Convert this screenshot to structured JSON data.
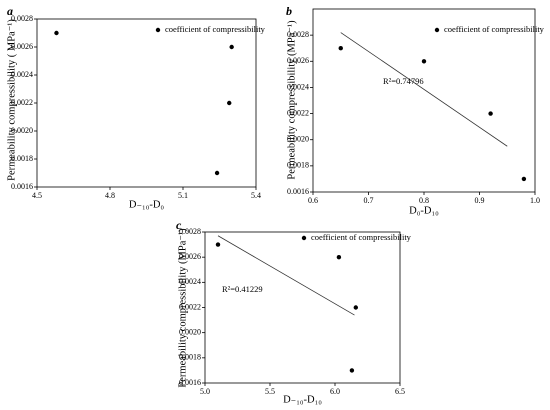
{
  "chart_data": [
    {
      "type": "scatter",
      "panel_label": "a",
      "x_label": "D₋₁₀-D₀",
      "y_label": "Permeability compressibility ( MPa⁻¹)",
      "series": [
        {
          "name": "coefficient of compressibility",
          "color": "#000000",
          "x": [
            4.58,
            5.3,
            5.29,
            5.24
          ],
          "values": [
            0.0027,
            0.0026,
            0.0022,
            0.0017
          ]
        }
      ],
      "xlim": [
        4.5,
        5.4
      ],
      "xticks": [
        4.5,
        4.8,
        5.1,
        5.4
      ],
      "ylim": [
        0.0016,
        0.0028
      ],
      "yticks": [
        0.0016,
        0.0018,
        {
          "value": 0.002,
          "label": "0.0020"
        },
        0.0022,
        0.0024,
        0.0026,
        0.0028
      ]
    },
    {
      "type": "scatter",
      "panel_label": "b",
      "x_label": "D₀-D₁₀",
      "y_label": "Permeability compressibility (MPa⁻¹)",
      "series": [
        {
          "name": "coefficient of compressibility",
          "color": "#000000",
          "x": [
            0.65,
            0.8,
            0.92,
            0.98
          ],
          "values": [
            0.0027,
            0.0026,
            0.0022,
            0.0017
          ]
        }
      ],
      "trendline": {
        "x": [
          0.65,
          0.95
        ],
        "y": [
          0.00282,
          0.00195
        ]
      },
      "annotation": "R²=0.74796",
      "xlim": [
        0.6,
        1.0
      ],
      "xticks": [
        0.6,
        0.7,
        0.8,
        0.9,
        {
          "value": 1,
          "label": "1.0"
        }
      ],
      "ylim": [
        0.0016,
        0.003
      ],
      "yticks": [
        0.0016,
        0.0018,
        {
          "value": 0.002,
          "label": "0.0020"
        },
        0.0022,
        0.0024,
        0.0026,
        0.0028
      ]
    },
    {
      "type": "scatter",
      "panel_label": "c",
      "x_label": "D₋₁₀-D₁₀",
      "y_label": "Permeability compressibility (MPa⁻¹)",
      "series": [
        {
          "name": "coefficient of compressibility",
          "color": "#000000",
          "x": [
            5.1,
            6.03,
            6.16,
            6.13
          ],
          "values": [
            0.0027,
            0.0026,
            0.0022,
            0.0017
          ]
        }
      ],
      "trendline": {
        "x": [
          5.1,
          6.15
        ],
        "y": [
          0.00277,
          0.00214
        ]
      },
      "annotation": "R²=0.41229",
      "xlim": [
        5.0,
        6.5
      ],
      "xticks": [
        {
          "value": 5,
          "label": "5.0"
        },
        5.5,
        {
          "value": 6,
          "label": "6.0"
        },
        6.5
      ],
      "ylim": [
        0.0016,
        0.0028
      ],
      "yticks": [
        0.0016,
        0.0018,
        {
          "value": 0.002,
          "label": "0.0020"
        },
        0.0022,
        0.0024,
        0.0026,
        0.0028
      ]
    }
  ]
}
